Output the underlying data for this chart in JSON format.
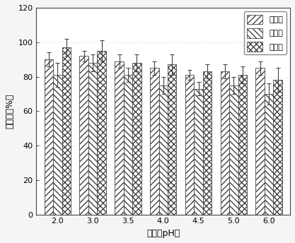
{
  "x_labels": [
    "2.0",
    "3.0",
    "3.5",
    "4.0",
    "4.5",
    "5.0",
    "6.0"
  ],
  "methyl_values": [
    90,
    92,
    89,
    85,
    81,
    83,
    85
  ],
  "ethyl_values": [
    81,
    88,
    81,
    75,
    73,
    75,
    70
  ],
  "inorganic_values": [
    97,
    95,
    88,
    87,
    83,
    81,
    78
  ],
  "methyl_errors": [
    4,
    3,
    4,
    4,
    3,
    4,
    4
  ],
  "ethyl_errors": [
    7,
    5,
    4,
    5,
    4,
    5,
    6
  ],
  "inorganic_errors": [
    5,
    6,
    5,
    6,
    4,
    5,
    7
  ],
  "bar_width": 0.25,
  "ylim": [
    0,
    120
  ],
  "yticks": [
    0,
    20,
    40,
    60,
    80,
    100,
    120
  ],
  "ylabel": "回收率（%）",
  "xlabel": "萝取剂pH値",
  "legend_labels": [
    "甲基汞",
    "乙基汞",
    "无机汞"
  ],
  "bar_facecolor": "#ffffff",
  "edge_color": "#444444",
  "error_color": "#444444",
  "hatch_methyl": "////",
  "hatch_ethyl": "\\\\\\\\",
  "hatch_inorganic": "xxxx",
  "background_color": "#f5f5f5",
  "plot_bg_color": "#ffffff",
  "label_fontsize": 9,
  "tick_fontsize": 8,
  "legend_fontsize": 8
}
